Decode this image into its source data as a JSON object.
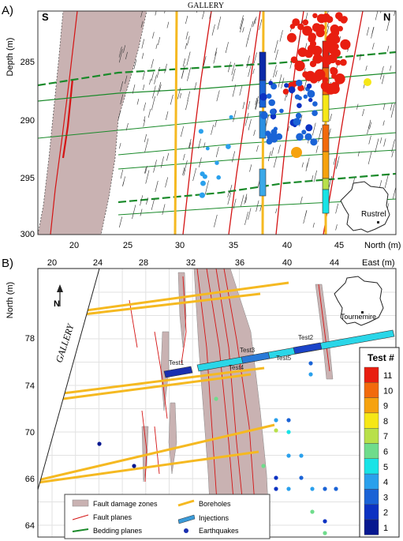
{
  "panel_a": {
    "label": "A)",
    "gallery_label": "GALLERY",
    "south_label": "S",
    "north_label": "N",
    "y_axis_label": "Depth (m)",
    "x_axis_label": "North (m)",
    "y_ticks": [
      "285",
      "290",
      "295",
      "300"
    ],
    "x_ticks": [
      "20",
      "25",
      "30",
      "35",
      "40",
      "45"
    ],
    "inset_label": "Rustrel"
  },
  "panel_b": {
    "label": "B)",
    "x_axis_label": "East (m)",
    "y_axis_label": "North (m)",
    "x_ticks": [
      "20",
      "24",
      "28",
      "32",
      "36",
      "40",
      "44"
    ],
    "y_ticks": [
      "78",
      "74",
      "70",
      "66",
      "64"
    ],
    "gallery_label": "GALLERY",
    "north_arrow": "N",
    "inset_label": "Tournemire",
    "tests": [
      "Test1",
      "Test2",
      "Test3",
      "Test4",
      "Test5"
    ],
    "colorbar_title": "Test #",
    "colorbar_labels": [
      "11",
      "10",
      "9",
      "8",
      "7",
      "6",
      "5",
      "4",
      "3",
      "2",
      "1"
    ],
    "colorbar_colors": [
      "#e81e10",
      "#f26a0c",
      "#f6a20e",
      "#f6e716",
      "#b8e04a",
      "#6fdc8c",
      "#19e3e6",
      "#2aa0ec",
      "#1a63d6",
      "#0c32c2",
      "#071890"
    ]
  },
  "legend": {
    "fault_damage_zones": "Fault damage zones",
    "fault_planes": "Fault planes",
    "bedding_planes": "Bedding planes",
    "boreholes": "Boreholes",
    "injections": "Injections",
    "earthquakes": "Earthquakes"
  },
  "colors": {
    "damage_zone": "#c9b2b2",
    "fault": "#d41414",
    "bedding": "#1a8a2a",
    "borehole": "#f5b921",
    "injection": "#3a9ad8"
  }
}
